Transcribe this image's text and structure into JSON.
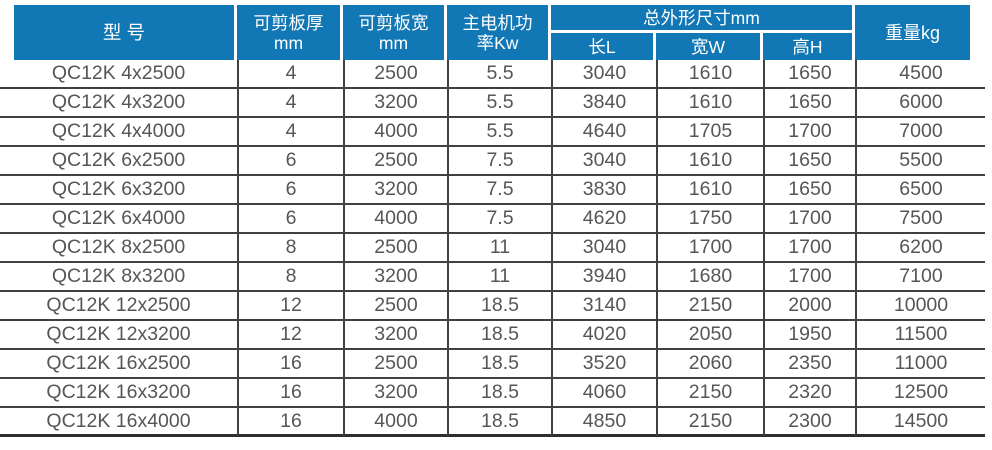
{
  "colors": {
    "header_bg": "#1277b5",
    "header_text": "#ffffff",
    "body_text": "#55565a",
    "grid_line": "#404043",
    "bottom_border": "#2e2e30"
  },
  "table": {
    "header": {
      "model": "型 号",
      "thickness_line1": "可剪板厚",
      "thickness_line2": "mm",
      "width_line1": "可剪板宽",
      "width_line2": "mm",
      "power_line1": "主电机功",
      "power_line2": "率Kw",
      "dims": "总外形尺寸mm",
      "dims_sub": [
        "长L",
        "宽W",
        "高H"
      ],
      "weight": "重量kg"
    },
    "rows": [
      [
        "QC12K 4x2500",
        "4",
        "2500",
        "5.5",
        "3040",
        "1610",
        "1650",
        "4500"
      ],
      [
        "QC12K 4x3200",
        "4",
        "3200",
        "5.5",
        "3840",
        "1610",
        "1650",
        "6000"
      ],
      [
        "QC12K 4x4000",
        "4",
        "4000",
        "5.5",
        "4640",
        "1705",
        "1700",
        "7000"
      ],
      [
        "QC12K 6x2500",
        "6",
        "2500",
        "7.5",
        "3040",
        "1610",
        "1650",
        "5500"
      ],
      [
        "QC12K 6x3200",
        "6",
        "3200",
        "7.5",
        "3830",
        "1610",
        "1650",
        "6500"
      ],
      [
        "QC12K 6x4000",
        "6",
        "4000",
        "7.5",
        "4620",
        "1750",
        "1700",
        "7500"
      ],
      [
        "QC12K 8x2500",
        "8",
        "2500",
        "11",
        "3040",
        "1700",
        "1700",
        "6200"
      ],
      [
        "QC12K 8x3200",
        "8",
        "3200",
        "11",
        "3940",
        "1680",
        "1700",
        "7100"
      ],
      [
        "QC12K 12x2500",
        "12",
        "2500",
        "18.5",
        "3140",
        "2150",
        "2000",
        "10000"
      ],
      [
        "QC12K 12x3200",
        "12",
        "3200",
        "18.5",
        "4020",
        "2050",
        "1950",
        "11500"
      ],
      [
        "QC12K 16x2500",
        "16",
        "2500",
        "18.5",
        "3520",
        "2060",
        "2350",
        "11000"
      ],
      [
        "QC12K 16x3200",
        "16",
        "3200",
        "18.5",
        "4060",
        "2150",
        "2320",
        "12500"
      ],
      [
        "QC12K 16x4000",
        "16",
        "4000",
        "18.5",
        "4850",
        "2150",
        "2300",
        "14500"
      ]
    ]
  }
}
